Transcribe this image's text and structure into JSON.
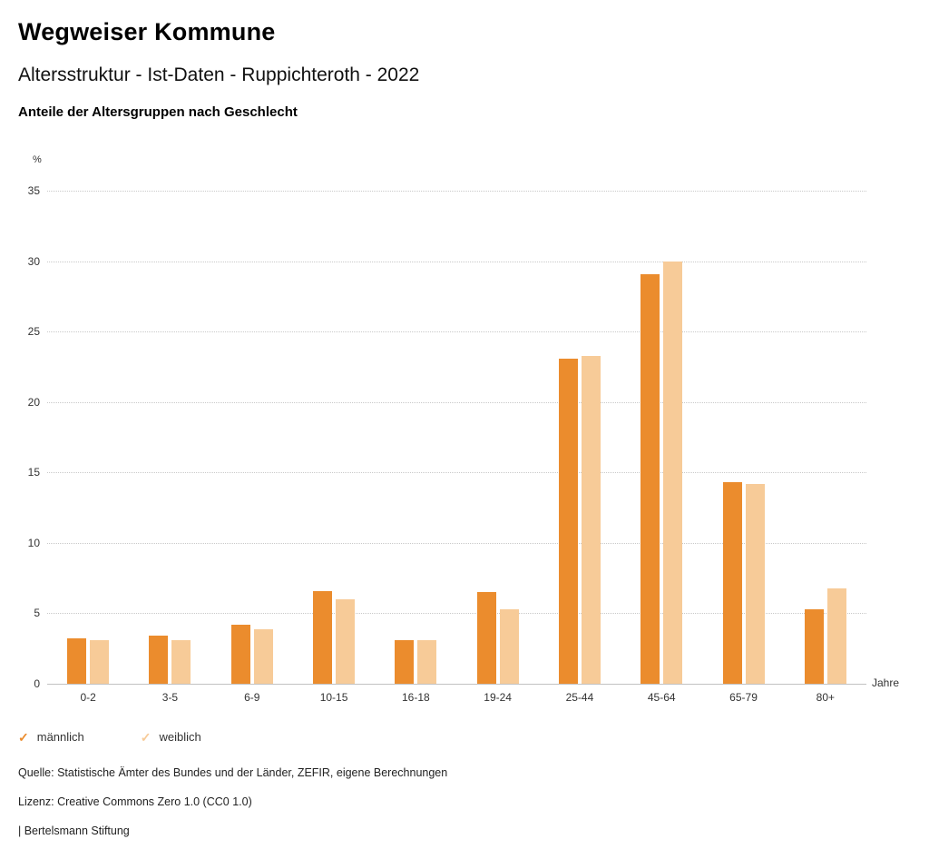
{
  "header": {
    "title": "Wegweiser Kommune",
    "subtitle": "Altersstruktur - Ist-Daten - Ruppichteroth - 2022",
    "chart_heading": "Anteile der Altersgruppen nach Geschlecht"
  },
  "chart_data": {
    "type": "bar",
    "categories": [
      "0-2",
      "3-5",
      "6-9",
      "10-15",
      "16-18",
      "19-24",
      "25-44",
      "45-64",
      "65-79",
      "80+"
    ],
    "series": [
      {
        "name": "männlich",
        "color": "#EB8C2D",
        "values": [
          3.2,
          3.4,
          4.2,
          6.6,
          3.1,
          6.5,
          23.1,
          29.1,
          14.3,
          5.3
        ]
      },
      {
        "name": "weiblich",
        "color": "#F7CB98",
        "values": [
          3.1,
          3.1,
          3.9,
          6.0,
          3.1,
          5.3,
          23.3,
          30.0,
          14.2,
          6.8
        ]
      }
    ],
    "title": "Anteile der Altersgruppen nach Geschlecht",
    "xlabel": "Jahre",
    "ylabel": "%",
    "ylim": [
      0,
      35
    ],
    "yticks": [
      0,
      5,
      10,
      15,
      20,
      25,
      30,
      35
    ],
    "grid": true,
    "legend_position": "bottom"
  },
  "legend": {
    "items": [
      {
        "label": "männlich",
        "color": "#EB8C2D"
      },
      {
        "label": "weiblich",
        "color": "#F7CB98"
      }
    ]
  },
  "footer": {
    "source": "Quelle: Statistische Ämter des Bundes und der Länder, ZEFIR, eigene Berechnungen",
    "license": "Lizenz: Creative Commons Zero 1.0 (CC0 1.0)",
    "attribution": "| Bertelsmann Stiftung"
  }
}
